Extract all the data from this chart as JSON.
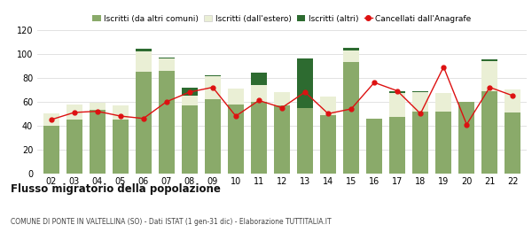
{
  "years": [
    "02",
    "03",
    "04",
    "05",
    "06",
    "07",
    "08",
    "09",
    "10",
    "11",
    "12",
    "13",
    "14",
    "15",
    "16",
    "17",
    "18",
    "19",
    "20",
    "21",
    "22"
  ],
  "iscritti_comuni": [
    40,
    45,
    53,
    45,
    85,
    86,
    57,
    62,
    58,
    60,
    57,
    55,
    49,
    93,
    46,
    47,
    52,
    52,
    60,
    69,
    51
  ],
  "iscritti_estero": [
    10,
    13,
    6,
    12,
    17,
    10,
    8,
    19,
    13,
    14,
    11,
    0,
    15,
    10,
    0,
    20,
    16,
    15,
    0,
    25,
    19
  ],
  "iscritti_altri": [
    0,
    0,
    0,
    0,
    2,
    1,
    7,
    1,
    0,
    10,
    0,
    41,
    0,
    2,
    0,
    2,
    1,
    0,
    0,
    1,
    0
  ],
  "cancellati": [
    45,
    51,
    52,
    48,
    46,
    60,
    68,
    72,
    48,
    61,
    55,
    68,
    50,
    54,
    76,
    69,
    50,
    89,
    41,
    72,
    65
  ],
  "legend_labels": [
    "Iscritti (da altri comuni)",
    "Iscritti (dall'estero)",
    "Iscritti (altri)",
    "Cancellati dall'Anagrafe"
  ],
  "color_comuni": "#8aaa6a",
  "color_estero": "#eaefd5",
  "color_altri": "#2d6b30",
  "color_cancellati": "#dd1111",
  "title": "Flusso migratorio della popolazione",
  "subtitle": "COMUNE DI PONTE IN VALTELLINA (SO) - Dati ISTAT (1 gen-31 dic) - Elaborazione TUTTITALIA.IT",
  "ylim": [
    0,
    120
  ],
  "yticks": [
    0,
    20,
    40,
    60,
    80,
    100,
    120
  ],
  "bg_color": "#ffffff",
  "grid_color": "#dddddd"
}
